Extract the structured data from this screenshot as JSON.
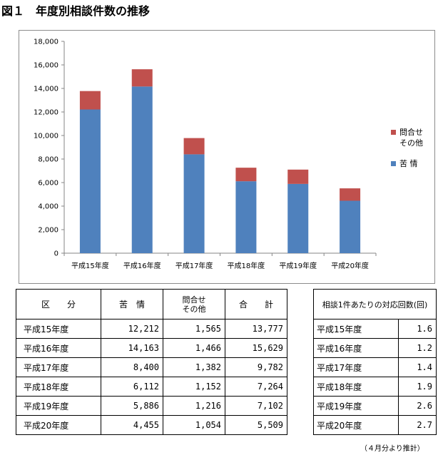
{
  "figure_title": "図１　年度別相談件数の推移",
  "chart_data": {
    "type": "bar",
    "stacked": true,
    "categories": [
      "平成15年度",
      "平成16年度",
      "平成17年度",
      "平成18年度",
      "平成19年度",
      "平成20年度"
    ],
    "series": [
      {
        "name": "苦 情",
        "color": "#4f81bd",
        "values": [
          12212,
          14163,
          8400,
          6112,
          5886,
          4455
        ]
      },
      {
        "name": "問合せ\nその他",
        "color": "#c0504d",
        "values": [
          1565,
          1466,
          1382,
          1152,
          1216,
          1054
        ]
      }
    ],
    "ylim": [
      0,
      18000
    ],
    "y_ticks": [
      "0",
      "2,000",
      "4,000",
      "6,000",
      "8,000",
      "10,000",
      "12,000",
      "14,000",
      "16,000",
      "18,000"
    ],
    "legend_position": "right",
    "grid": false
  },
  "main_table": {
    "headers": {
      "kubun": "区　　分",
      "kujo": "苦　情",
      "toiawase": "問合せ\nその他",
      "gokei": "合　　計"
    },
    "rows": [
      {
        "year": "平成15年度",
        "kujo": "12,212",
        "toiawase": "1,565",
        "gokei": "13,777"
      },
      {
        "year": "平成16年度",
        "kujo": "14,163",
        "toiawase": "1,466",
        "gokei": "15,629"
      },
      {
        "year": "平成17年度",
        "kujo": "8,400",
        "toiawase": "1,382",
        "gokei": "9,782"
      },
      {
        "year": "平成18年度",
        "kujo": "6,112",
        "toiawase": "1,152",
        "gokei": "7,264"
      },
      {
        "year": "平成19年度",
        "kujo": "5,886",
        "toiawase": "1,216",
        "gokei": "7,102"
      },
      {
        "year": "平成20年度",
        "kujo": "4,455",
        "toiawase": "1,054",
        "gokei": "5,509"
      }
    ]
  },
  "ratio_table": {
    "header": "相談1件あたりの対応回数(回)",
    "rows": [
      {
        "year": "平成15年度",
        "value": "1.6"
      },
      {
        "year": "平成16年度",
        "value": "1.2"
      },
      {
        "year": "平成17年度",
        "value": "1.4"
      },
      {
        "year": "平成18年度",
        "value": "1.9"
      },
      {
        "year": "平成19年度",
        "value": "2.6"
      },
      {
        "year": "平成20年度",
        "value": "2.7"
      }
    ]
  },
  "footnote": "（４月分より推計）"
}
